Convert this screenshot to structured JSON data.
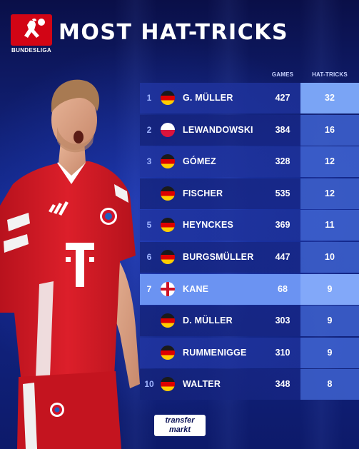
{
  "header": {
    "logo_text": "BUNDESLIGA",
    "title": "MOST HAT-TRICKS"
  },
  "table": {
    "col_games": "GAMES",
    "col_hattricks": "HAT-TRICKS",
    "rows": [
      {
        "rank": "1",
        "flag": "germany",
        "name": "G. MÜLLER",
        "games": "427",
        "hattricks": "32"
      },
      {
        "rank": "2",
        "flag": "poland",
        "name": "LEWANDOWSKI",
        "games": "384",
        "hattricks": "16"
      },
      {
        "rank": "3",
        "flag": "germany",
        "name": "GÓMEZ",
        "games": "328",
        "hattricks": "12"
      },
      {
        "rank": "",
        "flag": "germany",
        "name": "FISCHER",
        "games": "535",
        "hattricks": "12"
      },
      {
        "rank": "5",
        "flag": "germany",
        "name": "HEYNCKES",
        "games": "369",
        "hattricks": "11"
      },
      {
        "rank": "6",
        "flag": "germany",
        "name": "BURGSMÜLLER",
        "games": "447",
        "hattricks": "10"
      },
      {
        "rank": "7",
        "flag": "england",
        "name": "KANE",
        "games": "68",
        "hattricks": "9"
      },
      {
        "rank": "",
        "flag": "germany",
        "name": "D. MÜLLER",
        "games": "303",
        "hattricks": "9"
      },
      {
        "rank": "",
        "flag": "germany",
        "name": "RUMMENIGGE",
        "games": "310",
        "hattricks": "9"
      },
      {
        "rank": "10",
        "flag": "germany",
        "name": "WALTER",
        "games": "348",
        "hattricks": "8"
      }
    ],
    "highlight_name": "KANE"
  },
  "footer": {
    "brand_line1": "transfer",
    "brand_line2": "markt"
  },
  "colors": {
    "background": "#0b1257",
    "highlight_row": "#6b93f2",
    "bundesliga_red": "#d20515",
    "shirt_red": "#dc1f2a"
  },
  "icons": {
    "germany": "germany-flag-icon",
    "poland": "poland-flag-icon",
    "england": "england-flag-icon"
  }
}
